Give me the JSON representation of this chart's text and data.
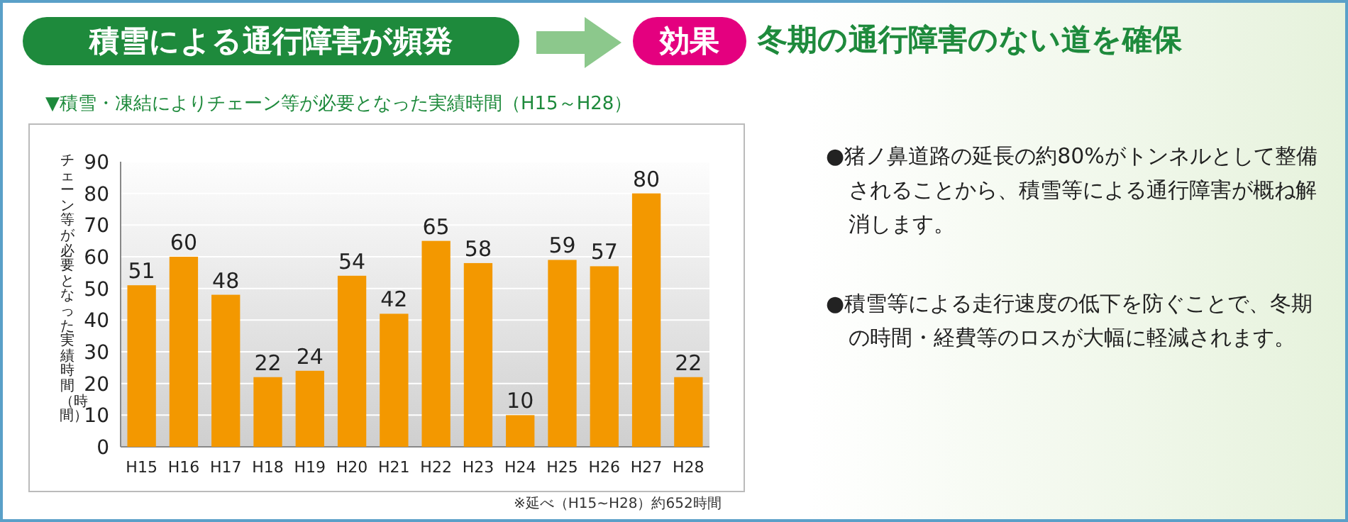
{
  "chart_data": {
    "type": "bar",
    "title": "積雪による通行障害が頻発",
    "subtitle": "▼積雪・凍結によりチェーン等が必要となった実績時間（H15～H28）",
    "ylabel": "チェーン等が必要となった実績時間（時間）",
    "annotations": [
      "効果",
      "冬期の通行障害のない道を確保",
      "●猪ノ鼻道路の延長の約80%がトンネルとして整備されることから、積雪等による通行障害が概ね解消します。",
      "●積雪等による走行速度の低下を防ぐことで、冬期の時間・経費等のロスが大幅に軽減されます。",
      "※延べ（H15~H28）約652時間"
    ],
    "categories": [
      "H15",
      "H16",
      "H17",
      "H18",
      "H19",
      "H20",
      "H21",
      "H22",
      "H23",
      "H24",
      "H25",
      "H26",
      "H27",
      "H28"
    ],
    "values": [
      51,
      60,
      48,
      22,
      24,
      54,
      42,
      65,
      58,
      10,
      59,
      57,
      80,
      22
    ],
    "color": "#f39800",
    "ylim": [
      0,
      90
    ],
    "yticks": [
      0,
      10,
      20,
      30,
      40,
      50,
      60,
      70,
      80,
      90
    ],
    "grid": "y",
    "data_labels": true
  }
}
